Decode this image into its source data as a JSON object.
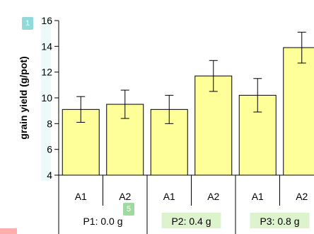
{
  "chart_data": {
    "type": "bar",
    "ylabel": "grain yield (g/pot)",
    "ylim": [
      4,
      16
    ],
    "yticks": [
      4,
      6,
      8,
      10,
      12,
      14,
      16
    ],
    "categories": [
      "A1",
      "A2",
      "A1",
      "A2",
      "A1",
      "A2"
    ],
    "groups": [
      {
        "label": "P1: 0.0 g",
        "span": [
          0,
          1
        ]
      },
      {
        "label": "P2: 0.4 g",
        "span": [
          2,
          3
        ]
      },
      {
        "label": "P3: 0.8 g",
        "span": [
          4,
          5
        ]
      }
    ],
    "values": [
      9.1,
      9.5,
      9.1,
      11.7,
      10.2,
      13.9
    ],
    "errors": [
      1.0,
      1.1,
      1.1,
      1.2,
      1.3,
      1.2
    ],
    "colors": {
      "bar_fill": "#ffff99",
      "bar_stroke": "#000000"
    }
  },
  "overlays": {
    "badge_1": "1",
    "badge_5": "5"
  }
}
